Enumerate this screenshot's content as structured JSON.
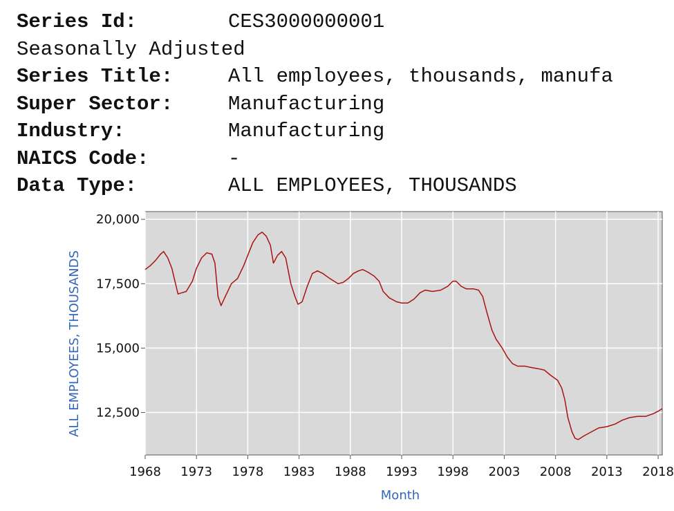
{
  "header": {
    "rows": [
      {
        "label": "Series Id:",
        "value": "CES3000000001"
      },
      {
        "label": "",
        "value": "Seasonally Adjusted",
        "plain": "Seasonally Adjusted"
      },
      {
        "label": "Series Title:",
        "value": "All employees, thousands, manufa"
      },
      {
        "label": "Super Sector:",
        "value": "Manufacturing"
      },
      {
        "label": "Industry:",
        "value": "Manufacturing"
      },
      {
        "label": "NAICS Code:",
        "value": "-"
      },
      {
        "label": "Data Type:",
        "value": "ALL EMPLOYEES, THOUSANDS"
      }
    ]
  },
  "chart_data": {
    "type": "line",
    "title": "",
    "xlabel": "Month",
    "ylabel": "ALL EMPLOYEES, THOUSANDS",
    "xlim": [
      1968,
      2018.4
    ],
    "ylim": [
      10850,
      20300
    ],
    "grid": true,
    "x_ticks": [
      1968,
      1973,
      1978,
      1983,
      1988,
      1993,
      1998,
      2003,
      2008,
      2013,
      2018
    ],
    "y_ticks": [
      12500,
      15000,
      17500,
      20000
    ],
    "y_tick_labels": [
      "12,500",
      "15,000",
      "17,500",
      "20,000"
    ],
    "line_color": "#aa1111",
    "series": [
      {
        "points": [
          [
            1968.0,
            18050
          ],
          [
            1968.5,
            18200
          ],
          [
            1969.0,
            18400
          ],
          [
            1969.5,
            18650
          ],
          [
            1969.8,
            18750
          ],
          [
            1970.2,
            18500
          ],
          [
            1970.6,
            18100
          ],
          [
            1970.9,
            17600
          ],
          [
            1971.2,
            17100
          ],
          [
            1971.6,
            17150
          ],
          [
            1972.0,
            17200
          ],
          [
            1972.6,
            17600
          ],
          [
            1973.0,
            18100
          ],
          [
            1973.5,
            18500
          ],
          [
            1974.0,
            18700
          ],
          [
            1974.5,
            18650
          ],
          [
            1974.8,
            18300
          ],
          [
            1975.1,
            17000
          ],
          [
            1975.4,
            16650
          ],
          [
            1975.8,
            17000
          ],
          [
            1976.4,
            17500
          ],
          [
            1977.0,
            17700
          ],
          [
            1977.6,
            18200
          ],
          [
            1978.0,
            18600
          ],
          [
            1978.5,
            19100
          ],
          [
            1979.0,
            19400
          ],
          [
            1979.4,
            19500
          ],
          [
            1979.8,
            19350
          ],
          [
            1980.2,
            19000
          ],
          [
            1980.5,
            18300
          ],
          [
            1980.9,
            18600
          ],
          [
            1981.3,
            18750
          ],
          [
            1981.7,
            18500
          ],
          [
            1982.2,
            17500
          ],
          [
            1982.6,
            17000
          ],
          [
            1982.9,
            16700
          ],
          [
            1983.3,
            16800
          ],
          [
            1983.8,
            17400
          ],
          [
            1984.3,
            17900
          ],
          [
            1984.8,
            18000
          ],
          [
            1985.3,
            17900
          ],
          [
            1986.0,
            17700
          ],
          [
            1986.8,
            17500
          ],
          [
            1987.3,
            17550
          ],
          [
            1987.8,
            17700
          ],
          [
            1988.3,
            17900
          ],
          [
            1988.8,
            18000
          ],
          [
            1989.2,
            18050
          ],
          [
            1989.7,
            17950
          ],
          [
            1990.3,
            17800
          ],
          [
            1990.8,
            17600
          ],
          [
            1991.2,
            17200
          ],
          [
            1991.8,
            16950
          ],
          [
            1992.5,
            16800
          ],
          [
            1993.0,
            16750
          ],
          [
            1993.6,
            16750
          ],
          [
            1994.2,
            16900
          ],
          [
            1994.8,
            17150
          ],
          [
            1995.3,
            17250
          ],
          [
            1996.0,
            17200
          ],
          [
            1996.8,
            17250
          ],
          [
            1997.5,
            17400
          ],
          [
            1998.0,
            17600
          ],
          [
            1998.3,
            17600
          ],
          [
            1998.8,
            17400
          ],
          [
            1999.3,
            17300
          ],
          [
            2000.0,
            17300
          ],
          [
            2000.5,
            17250
          ],
          [
            2000.9,
            17000
          ],
          [
            2001.3,
            16400
          ],
          [
            2001.8,
            15700
          ],
          [
            2002.2,
            15350
          ],
          [
            2002.8,
            15000
          ],
          [
            2003.3,
            14650
          ],
          [
            2003.8,
            14400
          ],
          [
            2004.3,
            14300
          ],
          [
            2005.0,
            14300
          ],
          [
            2005.6,
            14250
          ],
          [
            2006.3,
            14200
          ],
          [
            2006.9,
            14150
          ],
          [
            2007.5,
            13950
          ],
          [
            2008.2,
            13750
          ],
          [
            2008.6,
            13450
          ],
          [
            2008.9,
            13000
          ],
          [
            2009.2,
            12300
          ],
          [
            2009.6,
            11750
          ],
          [
            2009.9,
            11500
          ],
          [
            2010.2,
            11450
          ],
          [
            2010.8,
            11600
          ],
          [
            2011.5,
            11750
          ],
          [
            2012.2,
            11900
          ],
          [
            2013.0,
            11950
          ],
          [
            2013.8,
            12050
          ],
          [
            2014.5,
            12200
          ],
          [
            2015.2,
            12300
          ],
          [
            2016.0,
            12350
          ],
          [
            2016.8,
            12350
          ],
          [
            2017.5,
            12450
          ],
          [
            2018.0,
            12550
          ],
          [
            2018.4,
            12650
          ]
        ]
      }
    ]
  }
}
